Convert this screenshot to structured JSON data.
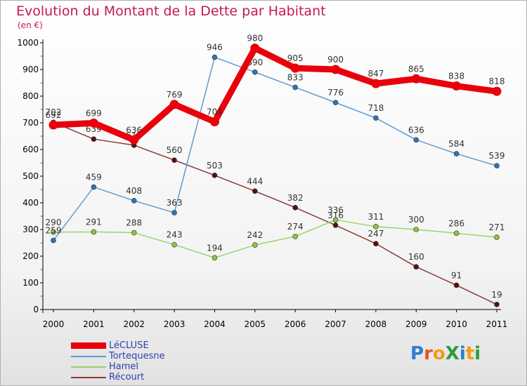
{
  "title": "Evolution du Montant de la Dette par Habitant",
  "subtitle": "(en €)",
  "logo": {
    "text": "ProXiti",
    "colors": [
      "#2a7fd4",
      "#e8541f",
      "#f39c12",
      "#2a9d3c",
      "#2a7fd4",
      "#f39c12",
      "#2a9d3c"
    ]
  },
  "chart_data": {
    "type": "line",
    "x": [
      "2000",
      "2001",
      "2002",
      "2003",
      "2004",
      "2005",
      "2006",
      "2007",
      "2008",
      "2009",
      "2010",
      "2011"
    ],
    "ylim": [
      0,
      1000
    ],
    "yticks": [
      0,
      100,
      200,
      300,
      400,
      500,
      600,
      700,
      800,
      900,
      1000
    ],
    "grid": false,
    "legend_position": "bottom-left",
    "series": [
      {
        "name": "LéCLUSE",
        "color": "#e8000b",
        "marker": "#e8000b",
        "values": [
          692,
          699,
          636,
          769,
          704,
          980,
          905,
          900,
          847,
          865,
          838,
          818
        ]
      },
      {
        "name": "Tortequesne",
        "color": "#5b9bd5",
        "marker": "#2e75b6",
        "values": [
          259,
          459,
          408,
          363,
          946,
          890,
          833,
          776,
          718,
          636,
          584,
          539
        ]
      },
      {
        "name": "Hamel",
        "color": "#9bd46f",
        "marker": "#8cc63f",
        "values": [
          290,
          291,
          288,
          243,
          194,
          242,
          274,
          336,
          311,
          300,
          286,
          271
        ]
      },
      {
        "name": "Récourt",
        "color": "#8b3a3a",
        "marker": "#5a0f0f",
        "values": [
          702,
          639,
          616,
          560,
          503,
          444,
          382,
          316,
          247,
          160,
          91,
          19
        ]
      }
    ]
  }
}
